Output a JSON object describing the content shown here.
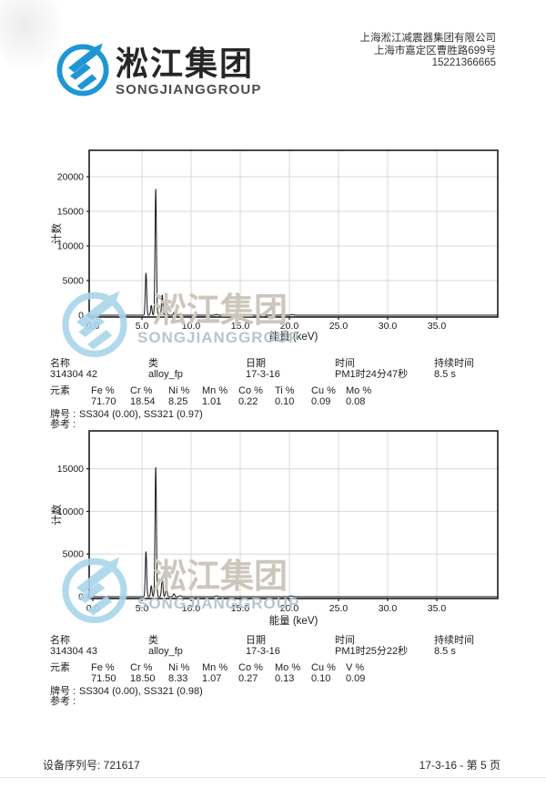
{
  "header": {
    "brand_cn": "淞江集团",
    "brand_en": "SONGJIANGGROUP",
    "company": [
      "上海淞江减震器集团有限公司",
      "上海市嘉定区曹胜路699号",
      "15221366665"
    ]
  },
  "watermark": {
    "title": "淞江集团",
    "subtitle": "SONGJIANGGROUP"
  },
  "records": [
    {
      "fields": [
        {
          "label": "名称",
          "value": "314304 42"
        },
        {
          "label": "类",
          "value": "alloy_fp"
        },
        {
          "label": "日期",
          "value": "17-3-16"
        },
        {
          "label": "时间",
          "value": "PM1时24分47秒"
        },
        {
          "label": "持续时间",
          "value": "8.5 s"
        }
      ],
      "elements_label": "元素",
      "elements": [
        {
          "symbol": "Fe %",
          "value": "71.70"
        },
        {
          "symbol": "Cr %",
          "value": "18.54"
        },
        {
          "symbol": "Ni %",
          "value": "8.25"
        },
        {
          "symbol": "Mn %",
          "value": "1.01"
        },
        {
          "symbol": "Co %",
          "value": "0.22"
        },
        {
          "symbol": "Ti %",
          "value": "0.10"
        },
        {
          "symbol": "Cu %",
          "value": "0.09"
        },
        {
          "symbol": "Mo %",
          "value": "0.08"
        }
      ],
      "grade_label": "牌号 :",
      "grade_value": "SS304 (0.00), SS321 (0.97)",
      "ref_label": "参考 :",
      "ref_value": ""
    },
    {
      "fields": [
        {
          "label": "名称",
          "value": "314304 43"
        },
        {
          "label": "类",
          "value": "alloy_fp"
        },
        {
          "label": "日期",
          "value": "17-3-16"
        },
        {
          "label": "时间",
          "value": "PM1时25分22秒"
        },
        {
          "label": "持续时间",
          "value": "8.5 s"
        }
      ],
      "elements_label": "元素",
      "elements": [
        {
          "symbol": "Fe %",
          "value": "71.50"
        },
        {
          "symbol": "Cr %",
          "value": "18.50"
        },
        {
          "symbol": "Ni %",
          "value": "8.33"
        },
        {
          "symbol": "Mn %",
          "value": "1.07"
        },
        {
          "symbol": "Co %",
          "value": "0.27"
        },
        {
          "symbol": "Mo %",
          "value": "0.13"
        },
        {
          "symbol": "Cu %",
          "value": "0.10"
        },
        {
          "symbol": "V %",
          "value": "0.09"
        }
      ],
      "grade_label": "牌号 :",
      "grade_value": "SS304 (0.00), SS321 (0.98)",
      "ref_label": "参考 :",
      "ref_value": ""
    }
  ],
  "chart_data": [
    {
      "type": "line",
      "title": "",
      "xlabel": "能量 (keV)",
      "ylabel": "计数",
      "xlim": [
        0,
        41.2
      ],
      "ylim": [
        0,
        23800
      ],
      "xticks": [
        0,
        5,
        10,
        15,
        20,
        25,
        30,
        35
      ],
      "xtick_labels": [
        "0.0",
        "5.0",
        "10.0",
        "15.0",
        "20.0",
        "25.0",
        "30.0",
        "35.0"
      ],
      "yticks": [
        0,
        5000,
        10000,
        15000,
        20000
      ],
      "grid": true,
      "legend": "none",
      "peaks": [
        {
          "kev": 5.41,
          "counts": 6100
        },
        {
          "kev": 5.95,
          "counts": 1400
        },
        {
          "kev": 6.4,
          "counts": 18300
        },
        {
          "kev": 7.06,
          "counts": 2900
        },
        {
          "kev": 7.48,
          "counts": 1500
        },
        {
          "kev": 8.26,
          "counts": 400
        },
        {
          "kev": 8.9,
          "counts": 120
        },
        {
          "kev": 12.6,
          "counts": 90
        },
        {
          "kev": 19.3,
          "counts": 70
        },
        {
          "kev": 20.3,
          "counts": 95
        }
      ]
    },
    {
      "type": "line",
      "title": "",
      "xlabel": "能量 (keV)",
      "ylabel": "计数",
      "xlim": [
        0,
        41.2
      ],
      "ylim": [
        0,
        19400
      ],
      "xticks": [
        0,
        5,
        10,
        15,
        20,
        25,
        30,
        35
      ],
      "xtick_labels": [
        "0.0",
        "5.0",
        "10.0",
        "15.0",
        "20.0",
        "25.0",
        "30.0",
        "35.0"
      ],
      "yticks": [
        0,
        5000,
        10000,
        15000
      ],
      "grid": true,
      "legend": "none",
      "peaks": [
        {
          "kev": 5.41,
          "counts": 5300
        },
        {
          "kev": 5.95,
          "counts": 1250
        },
        {
          "kev": 6.4,
          "counts": 15250
        },
        {
          "kev": 7.06,
          "counts": 2400
        },
        {
          "kev": 7.48,
          "counts": 1350
        },
        {
          "kev": 8.26,
          "counts": 350
        },
        {
          "kev": 8.9,
          "counts": 110
        },
        {
          "kev": 12.6,
          "counts": 80
        },
        {
          "kev": 20.2,
          "counts": 95
        }
      ]
    }
  ],
  "footer": {
    "serial": "设备序列号: 721617",
    "page": "17-3-16 - 第 5 页"
  },
  "colors": {
    "brand_blue": "#1f96d3",
    "watermark_blue": "#a9d5eb",
    "watermark_gray": "#ccc6bd",
    "axis": "#1c1c1c",
    "grid": "#d8d8d8",
    "spectrum": "#161616"
  }
}
